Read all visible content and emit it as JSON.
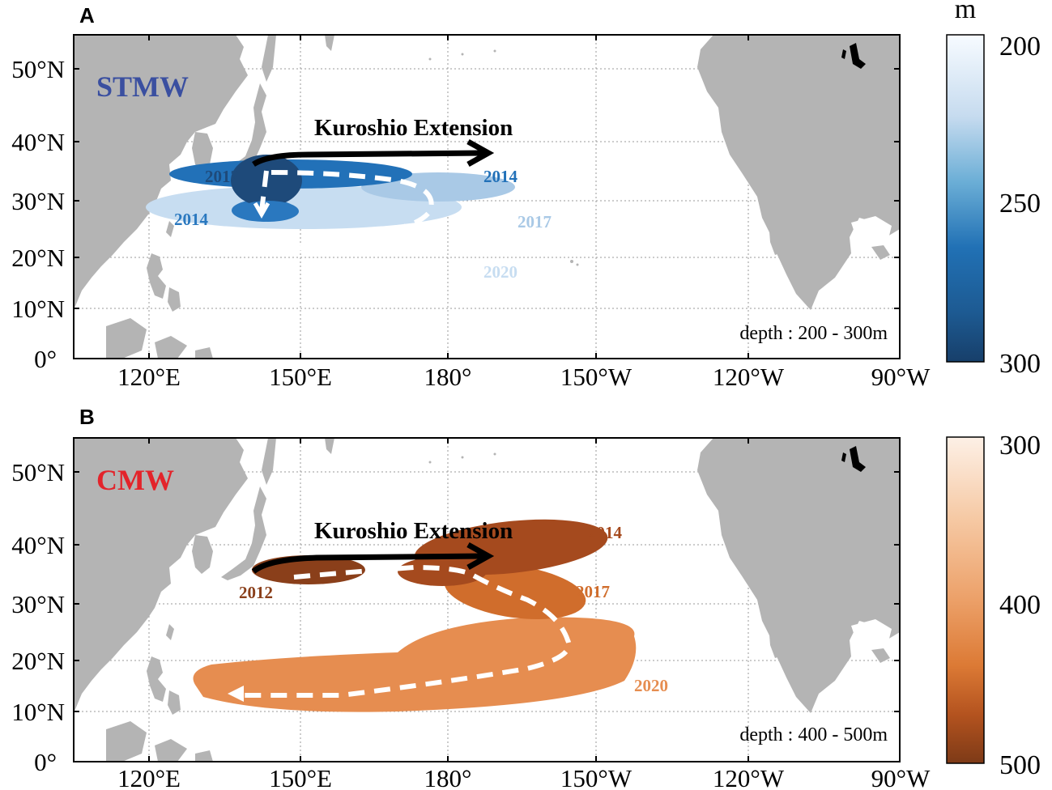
{
  "panels": [
    {
      "letter": "A",
      "water_mass": "STMW",
      "water_mass_color": "#3a4fa0",
      "current_label": "Kuroshio Extension",
      "depth_label": "depth : 200 - 300m",
      "colorbar": {
        "unit": "m",
        "ticks": [
          "200",
          "250",
          "300"
        ],
        "colors": [
          "#f7fbff",
          "#c6dbef",
          "#6baed6",
          "#2171b5",
          "#1d5a92",
          "#173f6a"
        ]
      },
      "blobs": [
        {
          "year": "2012",
          "color": "#1e4a7a"
        },
        {
          "year": "2014",
          "color": "#2271b8"
        },
        {
          "year": "2014",
          "color": "#2a78bf"
        },
        {
          "year": "2017",
          "color": "#a9c9e6"
        },
        {
          "year": "2020",
          "color": "#c7ddf1"
        }
      ]
    },
    {
      "letter": "B",
      "water_mass": "CMW",
      "water_mass_color": "#e3242b",
      "current_label": "Kuroshio Extension",
      "depth_label": "depth : 400 - 500m",
      "colorbar": {
        "unit": "",
        "ticks": [
          "300",
          "400",
          "500"
        ],
        "colors": [
          "#fdf0e6",
          "#f6c9a4",
          "#eca068",
          "#dc7a35",
          "#b4531f",
          "#7d3a17"
        ]
      },
      "blobs": [
        {
          "year": "2012",
          "color": "#8a3f1a"
        },
        {
          "year": "2014",
          "color": "#a54a1e"
        },
        {
          "year": "2017",
          "color": "#d06d2c"
        },
        {
          "year": "2020",
          "color": "#e68d50"
        }
      ]
    }
  ],
  "lat_labels": [
    "50°N",
    "40°N",
    "30°N",
    "20°N",
    "10°N",
    "0°"
  ],
  "lon_labels": [
    "120°E",
    "150°E",
    "180°",
    "150°W",
    "120°W",
    "90°W"
  ],
  "land_color": "#b4b4b4",
  "year_label_colors": {
    "stmw_dark": "#1e4a7a",
    "stmw_mid": "#2271b8",
    "stmw_light": "#a9c9e6",
    "cmw_dark": "#8a3f1a",
    "cmw_mid": "#d06d2c",
    "cmw_light": "#e68d50"
  }
}
